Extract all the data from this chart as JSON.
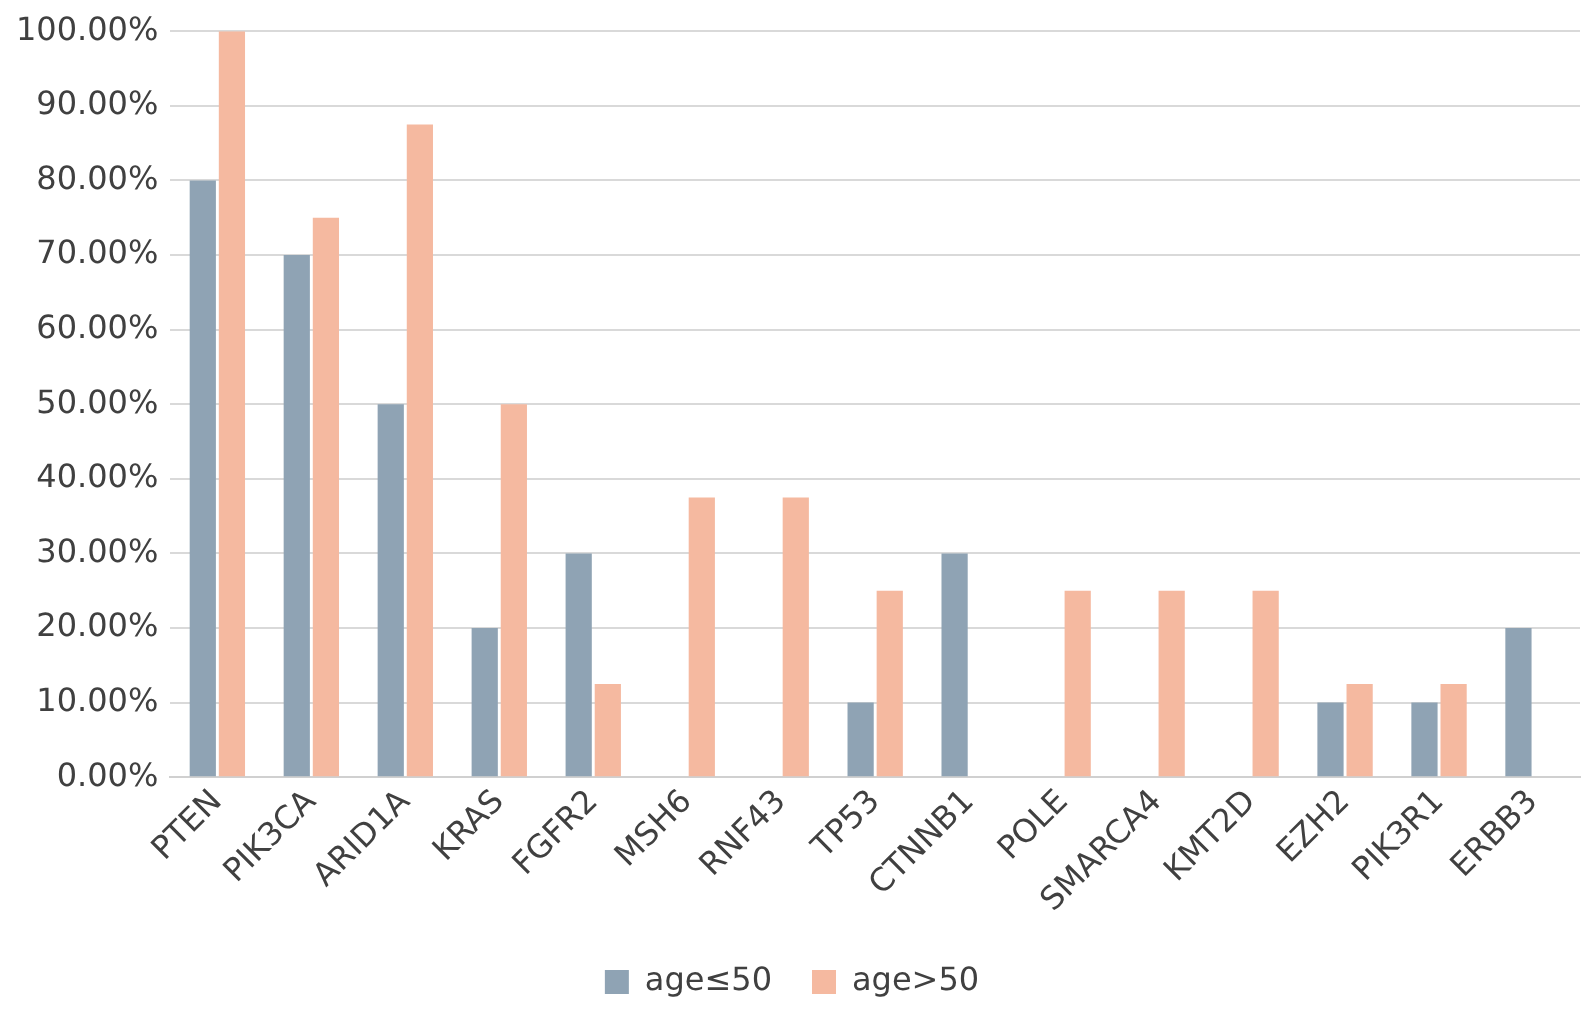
{
  "chart_data": {
    "type": "bar",
    "categories": [
      "PTEN",
      "PIK3CA",
      "ARID1A",
      "KRAS",
      "FGFR2",
      "MSH6",
      "RNF43",
      "TP53",
      "CTNNB1",
      "POLE",
      "SMARCA4",
      "KMT2D",
      "EZH2",
      "PIK3R1",
      "ERBB3"
    ],
    "series": [
      {
        "name": "age≤50",
        "color": "#8fa3b4",
        "values": [
          80,
          70,
          50,
          20,
          30,
          0,
          0,
          10,
          30,
          0,
          0,
          0,
          10,
          10,
          20
        ]
      },
      {
        "name": "age>50",
        "color": "#f5b9a0",
        "values": [
          100,
          75,
          87.5,
          50,
          12.5,
          37.5,
          37.5,
          25,
          0,
          25,
          25,
          25,
          12.5,
          12.5,
          0
        ]
      }
    ],
    "ylim": [
      0,
      100
    ],
    "yticks": [
      {
        "value": 0,
        "label": "0.00%"
      },
      {
        "value": 10,
        "label": "10.00%"
      },
      {
        "value": 20,
        "label": "20.00%"
      },
      {
        "value": 30,
        "label": "30.00%"
      },
      {
        "value": 40,
        "label": "40.00%"
      },
      {
        "value": 50,
        "label": "50.00%"
      },
      {
        "value": 60,
        "label": "60.00%"
      },
      {
        "value": 70,
        "label": "70.00%"
      },
      {
        "value": 80,
        "label": "80.00%"
      },
      {
        "value": 90,
        "label": "90.00%"
      },
      {
        "value": 100,
        "label": "100.00%"
      }
    ],
    "grid": "y",
    "legend": "bottom"
  }
}
